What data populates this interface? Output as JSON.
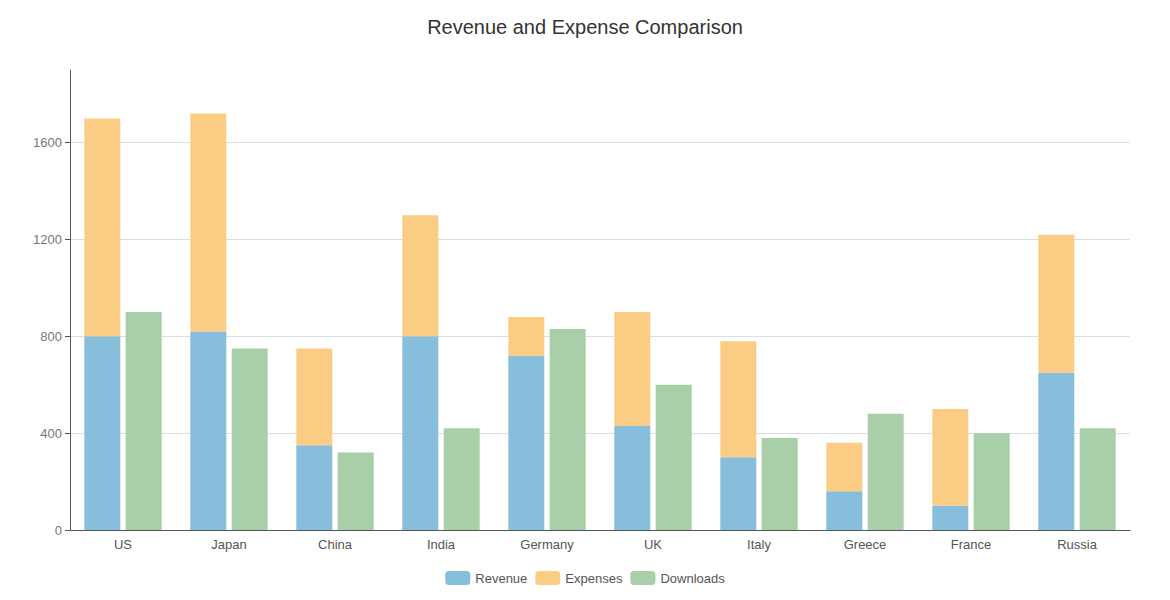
{
  "chart_data": {
    "type": "bar",
    "title": "Revenue and Expense Comparison",
    "categories": [
      "US",
      "Japan",
      "China",
      "India",
      "Germany",
      "UK",
      "Italy",
      "Greece",
      "France",
      "Russia"
    ],
    "series": [
      {
        "name": "Revenue",
        "color": "#87BEDC",
        "stacked": true,
        "values": [
          800,
          820,
          350,
          800,
          720,
          430,
          300,
          160,
          100,
          650
        ]
      },
      {
        "name": "Expenses",
        "color": "#FBCC84",
        "stacked": true,
        "values": [
          900,
          900,
          400,
          500,
          160,
          470,
          480,
          200,
          400,
          570
        ]
      },
      {
        "name": "Downloads",
        "color": "#A8CFA8",
        "stacked": false,
        "values": [
          900,
          750,
          320,
          420,
          830,
          600,
          380,
          480,
          400,
          420
        ]
      }
    ],
    "ylim": [
      0,
      1900
    ],
    "yticks": [
      0,
      400,
      800,
      1200,
      1600
    ],
    "grid": true,
    "legend": "bottom"
  }
}
